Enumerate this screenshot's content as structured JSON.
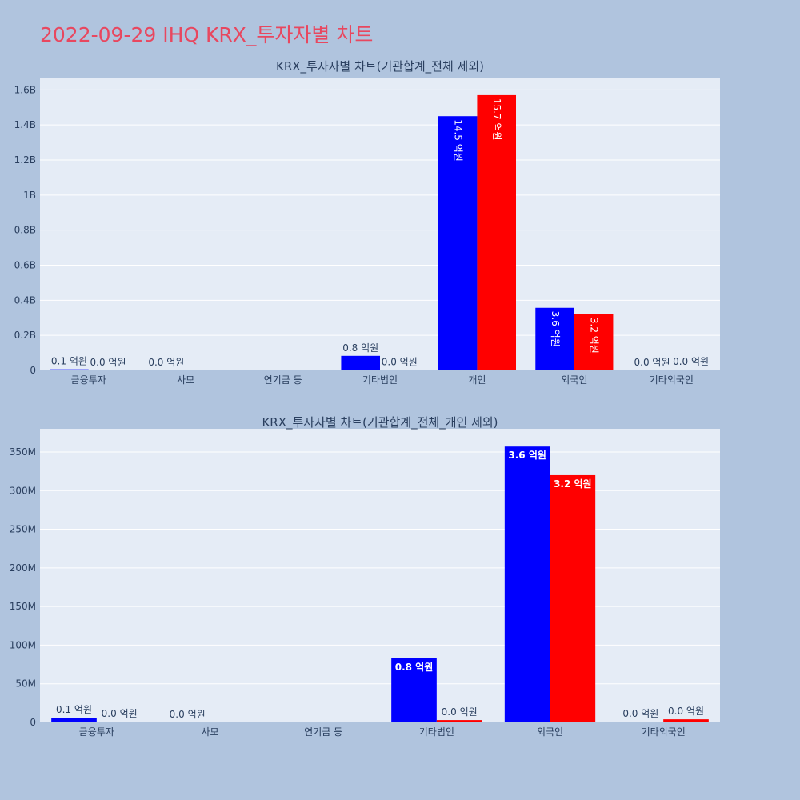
{
  "page_title": "2022-09-29 IHQ KRX_투자자별 차트",
  "colors": {
    "buy": "#0000ff",
    "sell": "#ff0000",
    "plot_bg": "#e5ecf6",
    "page_bg": "#b0c4de",
    "title": "#e8475f"
  },
  "chart_data": [
    {
      "type": "bar",
      "title": "KRX_투자자별 차트(기관합계_전체 제외)",
      "categories": [
        "금융투자",
        "사모",
        "연기금 등",
        "기타법인",
        "개인",
        "외국인",
        "기타외국인"
      ],
      "series": [
        {
          "color": "#0000ff",
          "values": [
            6000000,
            0,
            null,
            83000000,
            1450000000,
            357000000,
            1000000
          ],
          "labels": [
            "0.1 억원",
            "0.0 억원",
            "",
            "0.8 억원",
            "14.5 억원",
            "3.6 억원",
            "0.0 억원"
          ]
        },
        {
          "color": "#ff0000",
          "values": [
            1000000,
            null,
            null,
            3000000,
            1570000000,
            320000000,
            4000000
          ],
          "labels": [
            "0.0 억원",
            "",
            "",
            "0.0 억원",
            "15.7 억원",
            "3.2 억원",
            "0.0 억원"
          ]
        }
      ],
      "ylim": [
        0,
        1670000000
      ],
      "yticks": [
        0,
        200000000,
        400000000,
        600000000,
        800000000,
        1000000000,
        1200000000,
        1400000000,
        1600000000
      ],
      "ytick_labels": [
        "0",
        "0.2B",
        "0.4B",
        "0.6B",
        "0.8B",
        "1B",
        "1.2B",
        "1.4B",
        "1.6B"
      ],
      "xlabel": "",
      "ylabel": "",
      "grid": true
    },
    {
      "type": "bar",
      "title": "KRX_투자자별 차트(기관합계_전체_개인 제외)",
      "categories": [
        "금융투자",
        "사모",
        "연기금 등",
        "기타법인",
        "외국인",
        "기타외국인"
      ],
      "series": [
        {
          "color": "#0000ff",
          "values": [
            6000000,
            0,
            null,
            83000000,
            357000000,
            1000000
          ],
          "labels": [
            "0.1 억원",
            "0.0 억원",
            "",
            "0.8 억원",
            "3.6 억원",
            "0.0 억원"
          ]
        },
        {
          "color": "#ff0000",
          "values": [
            1000000,
            null,
            null,
            3000000,
            320000000,
            4000000
          ],
          "labels": [
            "0.0 억원",
            "",
            "",
            "0.0 억원",
            "3.2 억원",
            "0.0 억원"
          ]
        }
      ],
      "ylim": [
        0,
        380000000
      ],
      "yticks": [
        0,
        50000000,
        100000000,
        150000000,
        200000000,
        250000000,
        300000000,
        350000000
      ],
      "ytick_labels": [
        "0",
        "50M",
        "100M",
        "150M",
        "200M",
        "250M",
        "300M",
        "350M"
      ],
      "xlabel": "",
      "ylabel": "",
      "grid": true
    }
  ]
}
